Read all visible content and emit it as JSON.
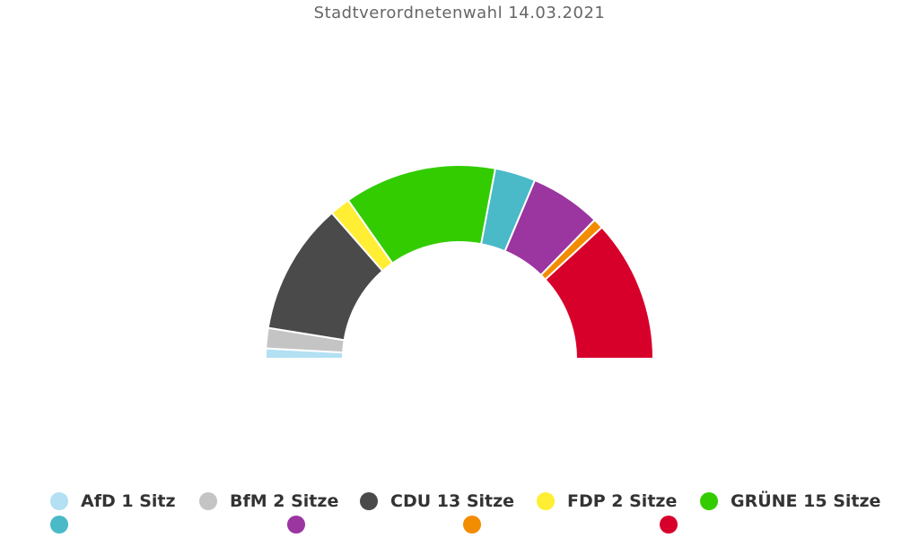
{
  "chart_data": {
    "type": "pie",
    "subtype": "parliament-semicircle",
    "title": "Stadtverordnetenwahl 14.03.2021",
    "parties": [
      {
        "name": "AfD",
        "seats": 1,
        "color": "#b3e0f2",
        "legend": "AfD 1 Sitz"
      },
      {
        "name": "BfM",
        "seats": 2,
        "color": "#c4c4c4",
        "legend": "BfM 2 Sitze"
      },
      {
        "name": "CDU",
        "seats": 13,
        "color": "#4a4a4a",
        "legend": "CDU 13 Sitze"
      },
      {
        "name": "FDP",
        "seats": 2,
        "color": "#ffee33",
        "legend": "FDP 2 Sitze"
      },
      {
        "name": "GRÜNE",
        "seats": 15,
        "color": "#33cc00",
        "legend": "GRÜNE 15 Sitze"
      },
      {
        "name": "",
        "seats": 4,
        "color": "#4ab9c8",
        "legend": ""
      },
      {
        "name": "",
        "seats": 7,
        "color": "#9b35a0",
        "legend": ""
      },
      {
        "name": "",
        "seats": 1,
        "color": "#f28c00",
        "legend": ""
      },
      {
        "name": "",
        "seats": 14,
        "color": "#d7002b",
        "legend": ""
      }
    ],
    "legend_position": "bottom"
  }
}
